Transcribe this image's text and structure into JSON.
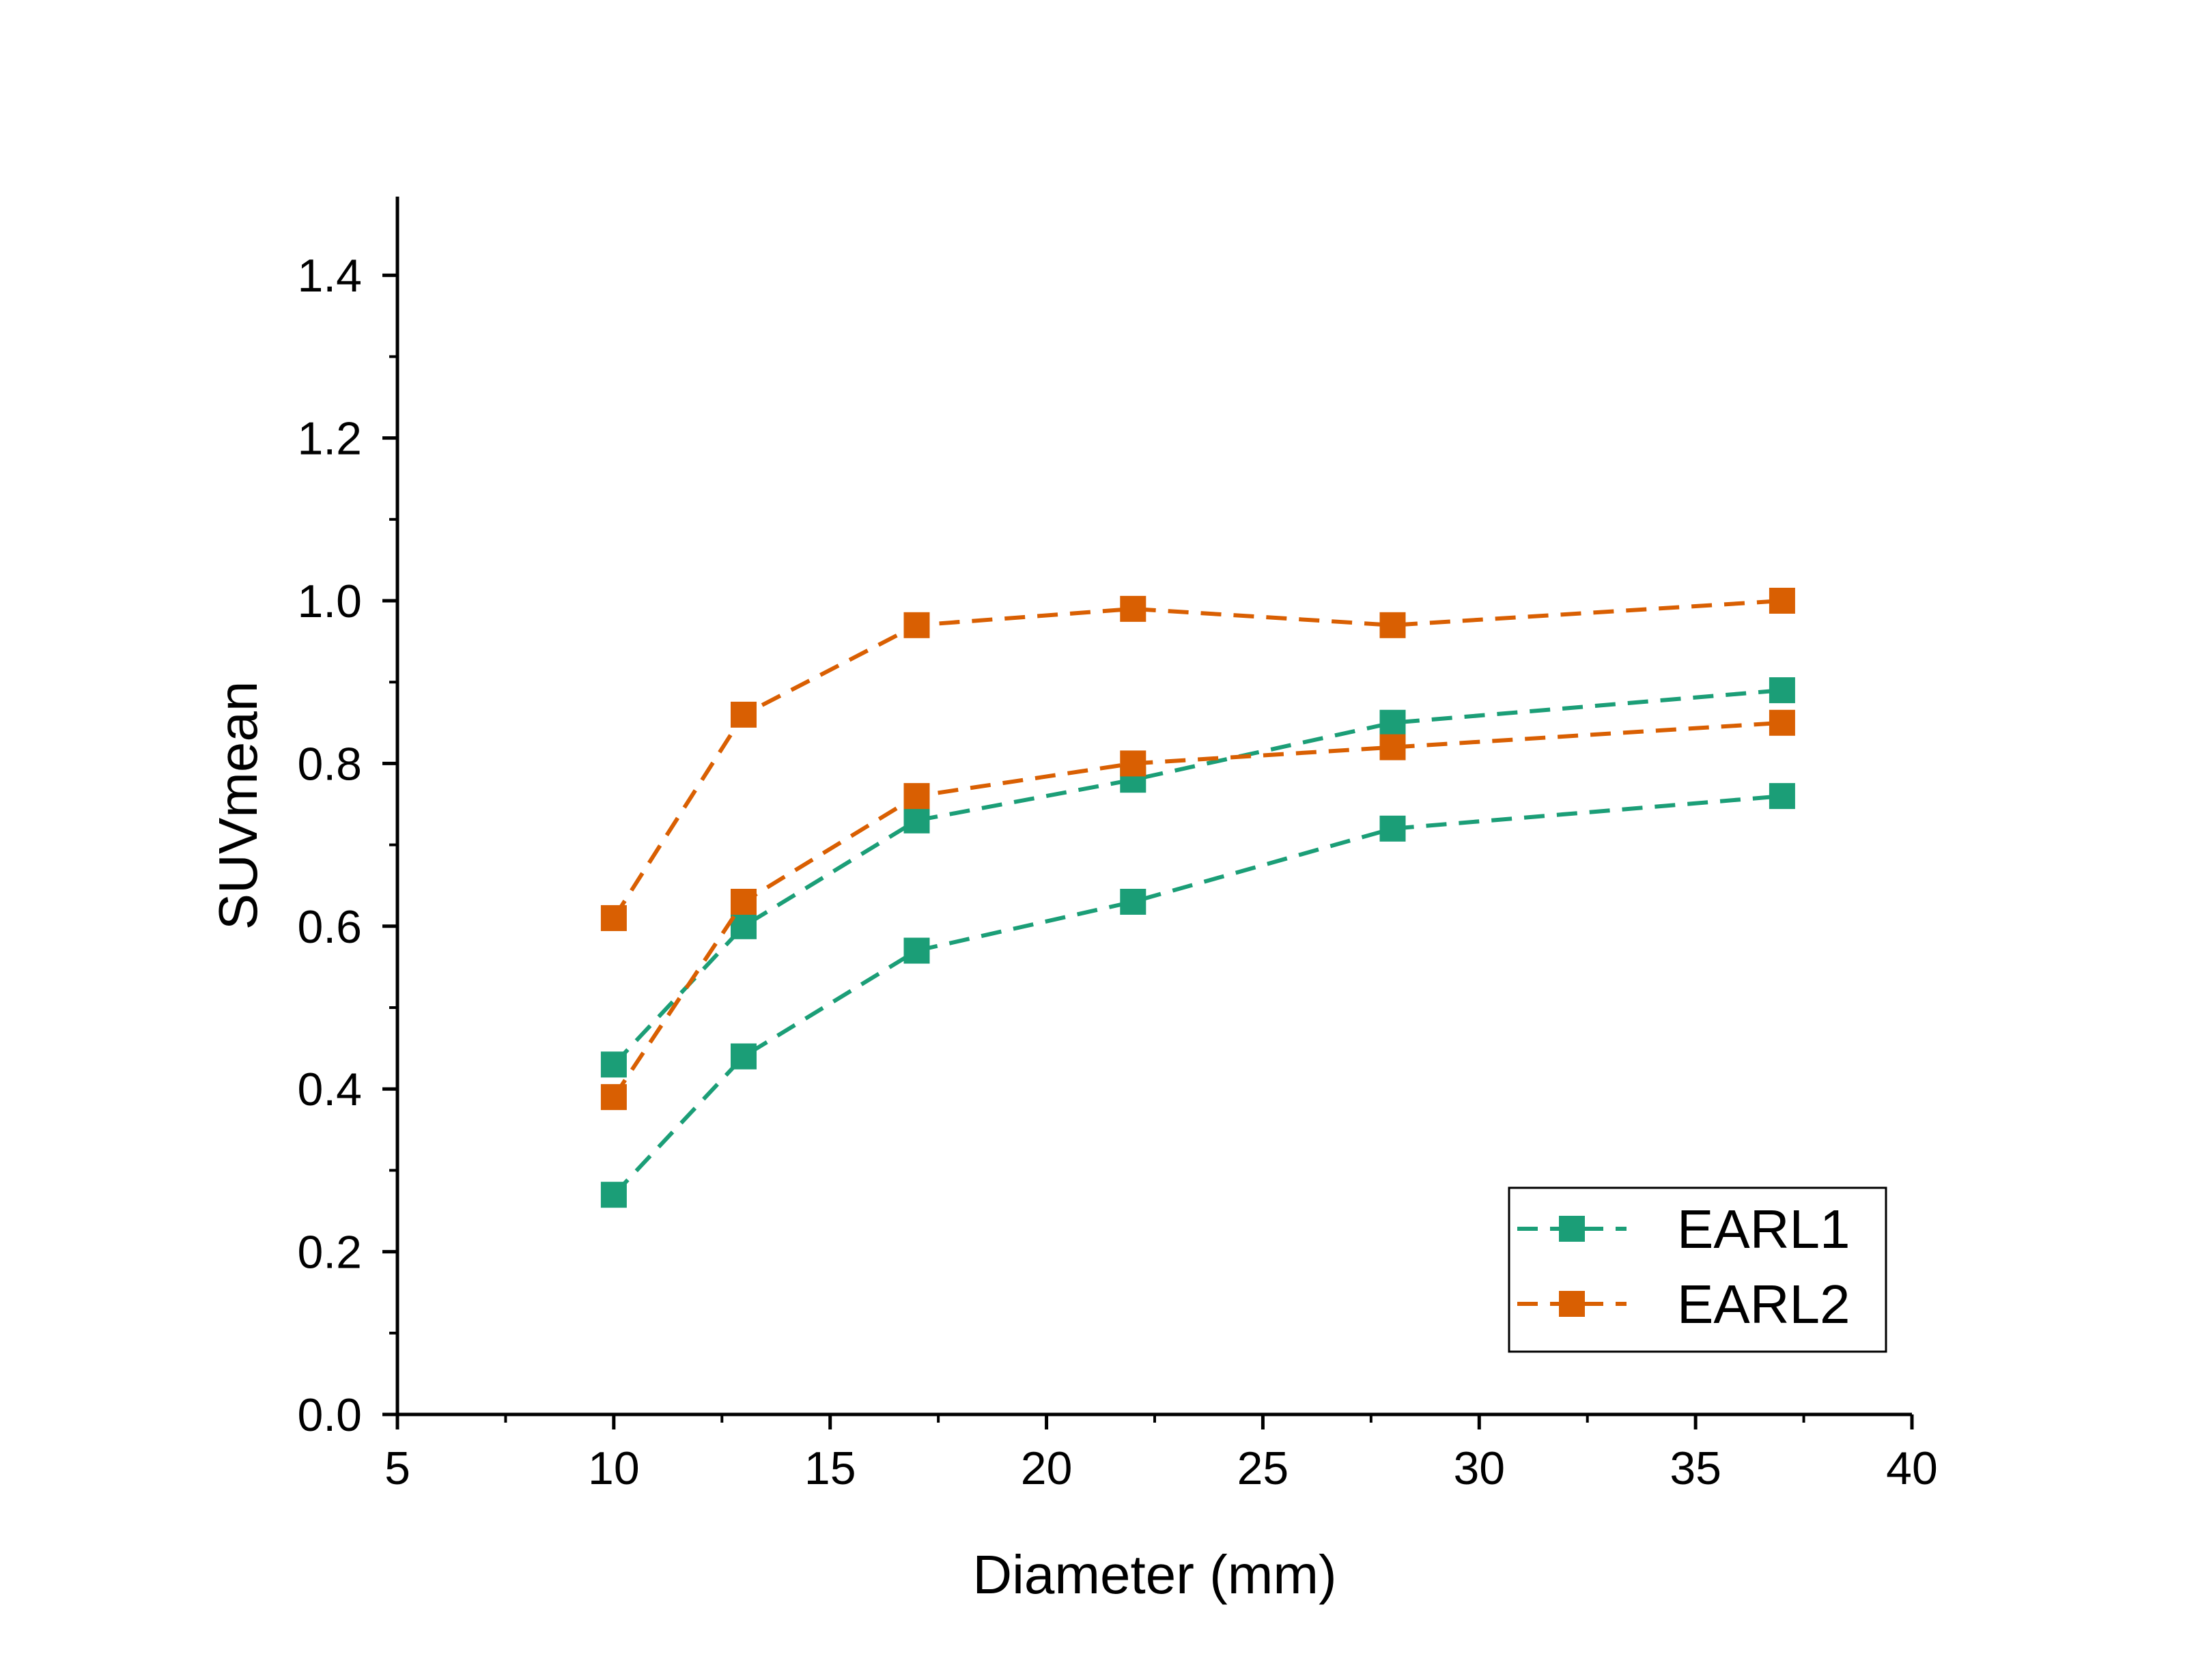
{
  "chart_data": {
    "type": "line",
    "title": "",
    "xlabel": "Diameter (mm)",
    "ylabel": "SUVmean",
    "xlim": [
      5,
      40
    ],
    "ylim": [
      0.0,
      1.5
    ],
    "x_ticks": [
      "5",
      "10",
      "15",
      "20",
      "25",
      "30",
      "35",
      "40"
    ],
    "y_ticks": [
      "0.0",
      "0.2",
      "0.4",
      "0.6",
      "0.8",
      "1.0",
      "1.2",
      "1.4"
    ],
    "grid": false,
    "legend_position": "bottom-right",
    "marker": "square",
    "line_style": "dashed",
    "x": [
      10,
      13,
      17,
      22,
      28,
      37
    ],
    "series": [
      {
        "name": "EARL1",
        "legend": true,
        "color": "#1b9e77",
        "values": [
          0.43,
          0.6,
          0.73,
          0.78,
          0.85,
          0.89
        ]
      },
      {
        "name": "EARL1",
        "legend": false,
        "color": "#1b9e77",
        "values": [
          0.27,
          0.44,
          0.57,
          0.63,
          0.72,
          0.76
        ]
      },
      {
        "name": "EARL2",
        "legend": true,
        "color": "#d95f02",
        "values": [
          0.61,
          0.86,
          0.97,
          0.99,
          0.97,
          1.0
        ]
      },
      {
        "name": "EARL2",
        "legend": false,
        "color": "#d95f02",
        "values": [
          0.39,
          0.63,
          0.76,
          0.8,
          0.82,
          0.85
        ]
      }
    ]
  }
}
